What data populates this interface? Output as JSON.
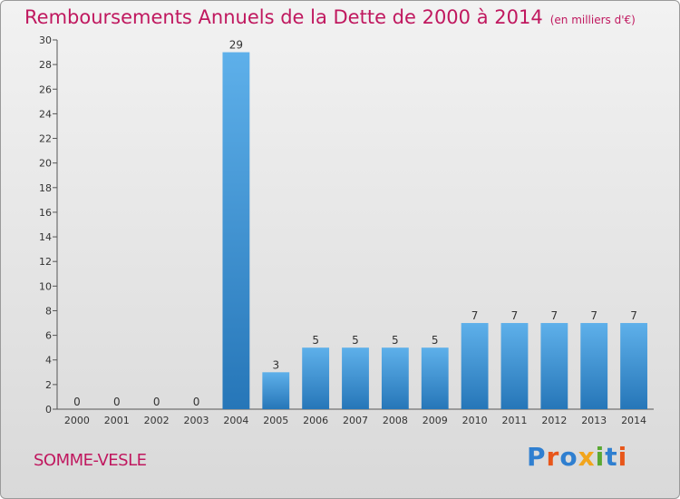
{
  "title": "Remboursements Annuels de la Dette de 2000 à 2014",
  "unit": "(en milliers d'€)",
  "commune": "SOMME-VESLE",
  "logo": {
    "text": "Proxiti",
    "letters": [
      {
        "ch": "P",
        "color": "#2f7fd0"
      },
      {
        "ch": "r",
        "color": "#e8561a"
      },
      {
        "ch": "o",
        "color": "#2f7fd0"
      },
      {
        "ch": "x",
        "color": "#f2a51c"
      },
      {
        "ch": "i",
        "color": "#5aa832"
      },
      {
        "ch": "t",
        "color": "#2f7fd0"
      },
      {
        "ch": "i",
        "color": "#e8561a"
      }
    ]
  },
  "colors": {
    "accent": "#c0185f",
    "bar_top": "#5eb0ea",
    "bar_bottom": "#2676b8"
  },
  "chart_data": {
    "type": "bar",
    "title": "Remboursements Annuels de la Dette de 2000 à 2014",
    "subtitle": "(en milliers d'€)",
    "categories": [
      "2000",
      "2001",
      "2002",
      "2003",
      "2004",
      "2005",
      "2006",
      "2007",
      "2008",
      "2009",
      "2010",
      "2011",
      "2012",
      "2013",
      "2014"
    ],
    "values": [
      0,
      0,
      0,
      0,
      29,
      3,
      5,
      5,
      5,
      5,
      7,
      7,
      7,
      7,
      7
    ],
    "ylim": [
      0,
      30
    ],
    "yticks": [
      0,
      2,
      4,
      6,
      8,
      10,
      12,
      14,
      16,
      18,
      20,
      22,
      24,
      26,
      28,
      30
    ],
    "grid": false,
    "legend": "none"
  }
}
